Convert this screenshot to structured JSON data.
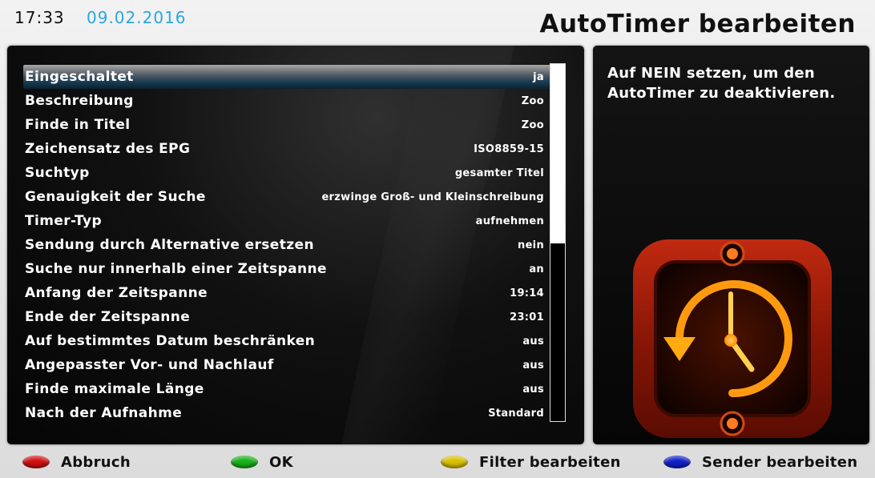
{
  "header": {
    "time": "17:33",
    "date": "09.02.2016",
    "title": "AutoTimer bearbeiten",
    "date_color": "#2aa7df"
  },
  "settings": [
    {
      "label": "Eingeschaltet",
      "value": "ja"
    },
    {
      "label": "Beschreibung",
      "value": "Zoo"
    },
    {
      "label": "Finde in Titel",
      "value": "Zoo"
    },
    {
      "label": "Zeichensatz des EPG",
      "value": "ISO8859-15"
    },
    {
      "label": "Suchtyp",
      "value": "gesamter Titel"
    },
    {
      "label": "Genauigkeit der Suche",
      "value": "erzwinge Groß- und Kleinschreibung"
    },
    {
      "label": "Timer-Typ",
      "value": "aufnehmen"
    },
    {
      "label": "Sendung durch Alternative ersetzen",
      "value": "nein"
    },
    {
      "label": "Suche nur innerhalb einer Zeitspanne",
      "value": "an"
    },
    {
      "label": "Anfang der Zeitspanne",
      "value": "19:14"
    },
    {
      "label": "Ende der Zeitspanne",
      "value": "23:01"
    },
    {
      "label": "Auf bestimmtes Datum beschränken",
      "value": "aus"
    },
    {
      "label": "Angepasster Vor- und Nachlauf",
      "value": "aus"
    },
    {
      "label": "Finde maximale Länge",
      "value": "aus"
    },
    {
      "label": "Nach der Aufnahme",
      "value": "Standard"
    }
  ],
  "selected_index": 0,
  "scroll_fraction_visible": 0.5,
  "help": {
    "text": "Auf  NEIN setzen, um den\nAutoTimer zu deaktivieren.",
    "icon": "autotimer-clock-icon"
  },
  "buttons": [
    {
      "label": "Abbruch",
      "color": "#d01010",
      "icon": "red-key-icon"
    },
    {
      "label": "OK",
      "color": "#18b018",
      "icon": "green-key-icon"
    },
    {
      "label": "Filter bearbeiten",
      "color": "#d8c000",
      "icon": "yellow-key-icon"
    },
    {
      "label": "Sender bearbeiten",
      "color": "#1020c8",
      "icon": "blue-key-icon"
    }
  ]
}
